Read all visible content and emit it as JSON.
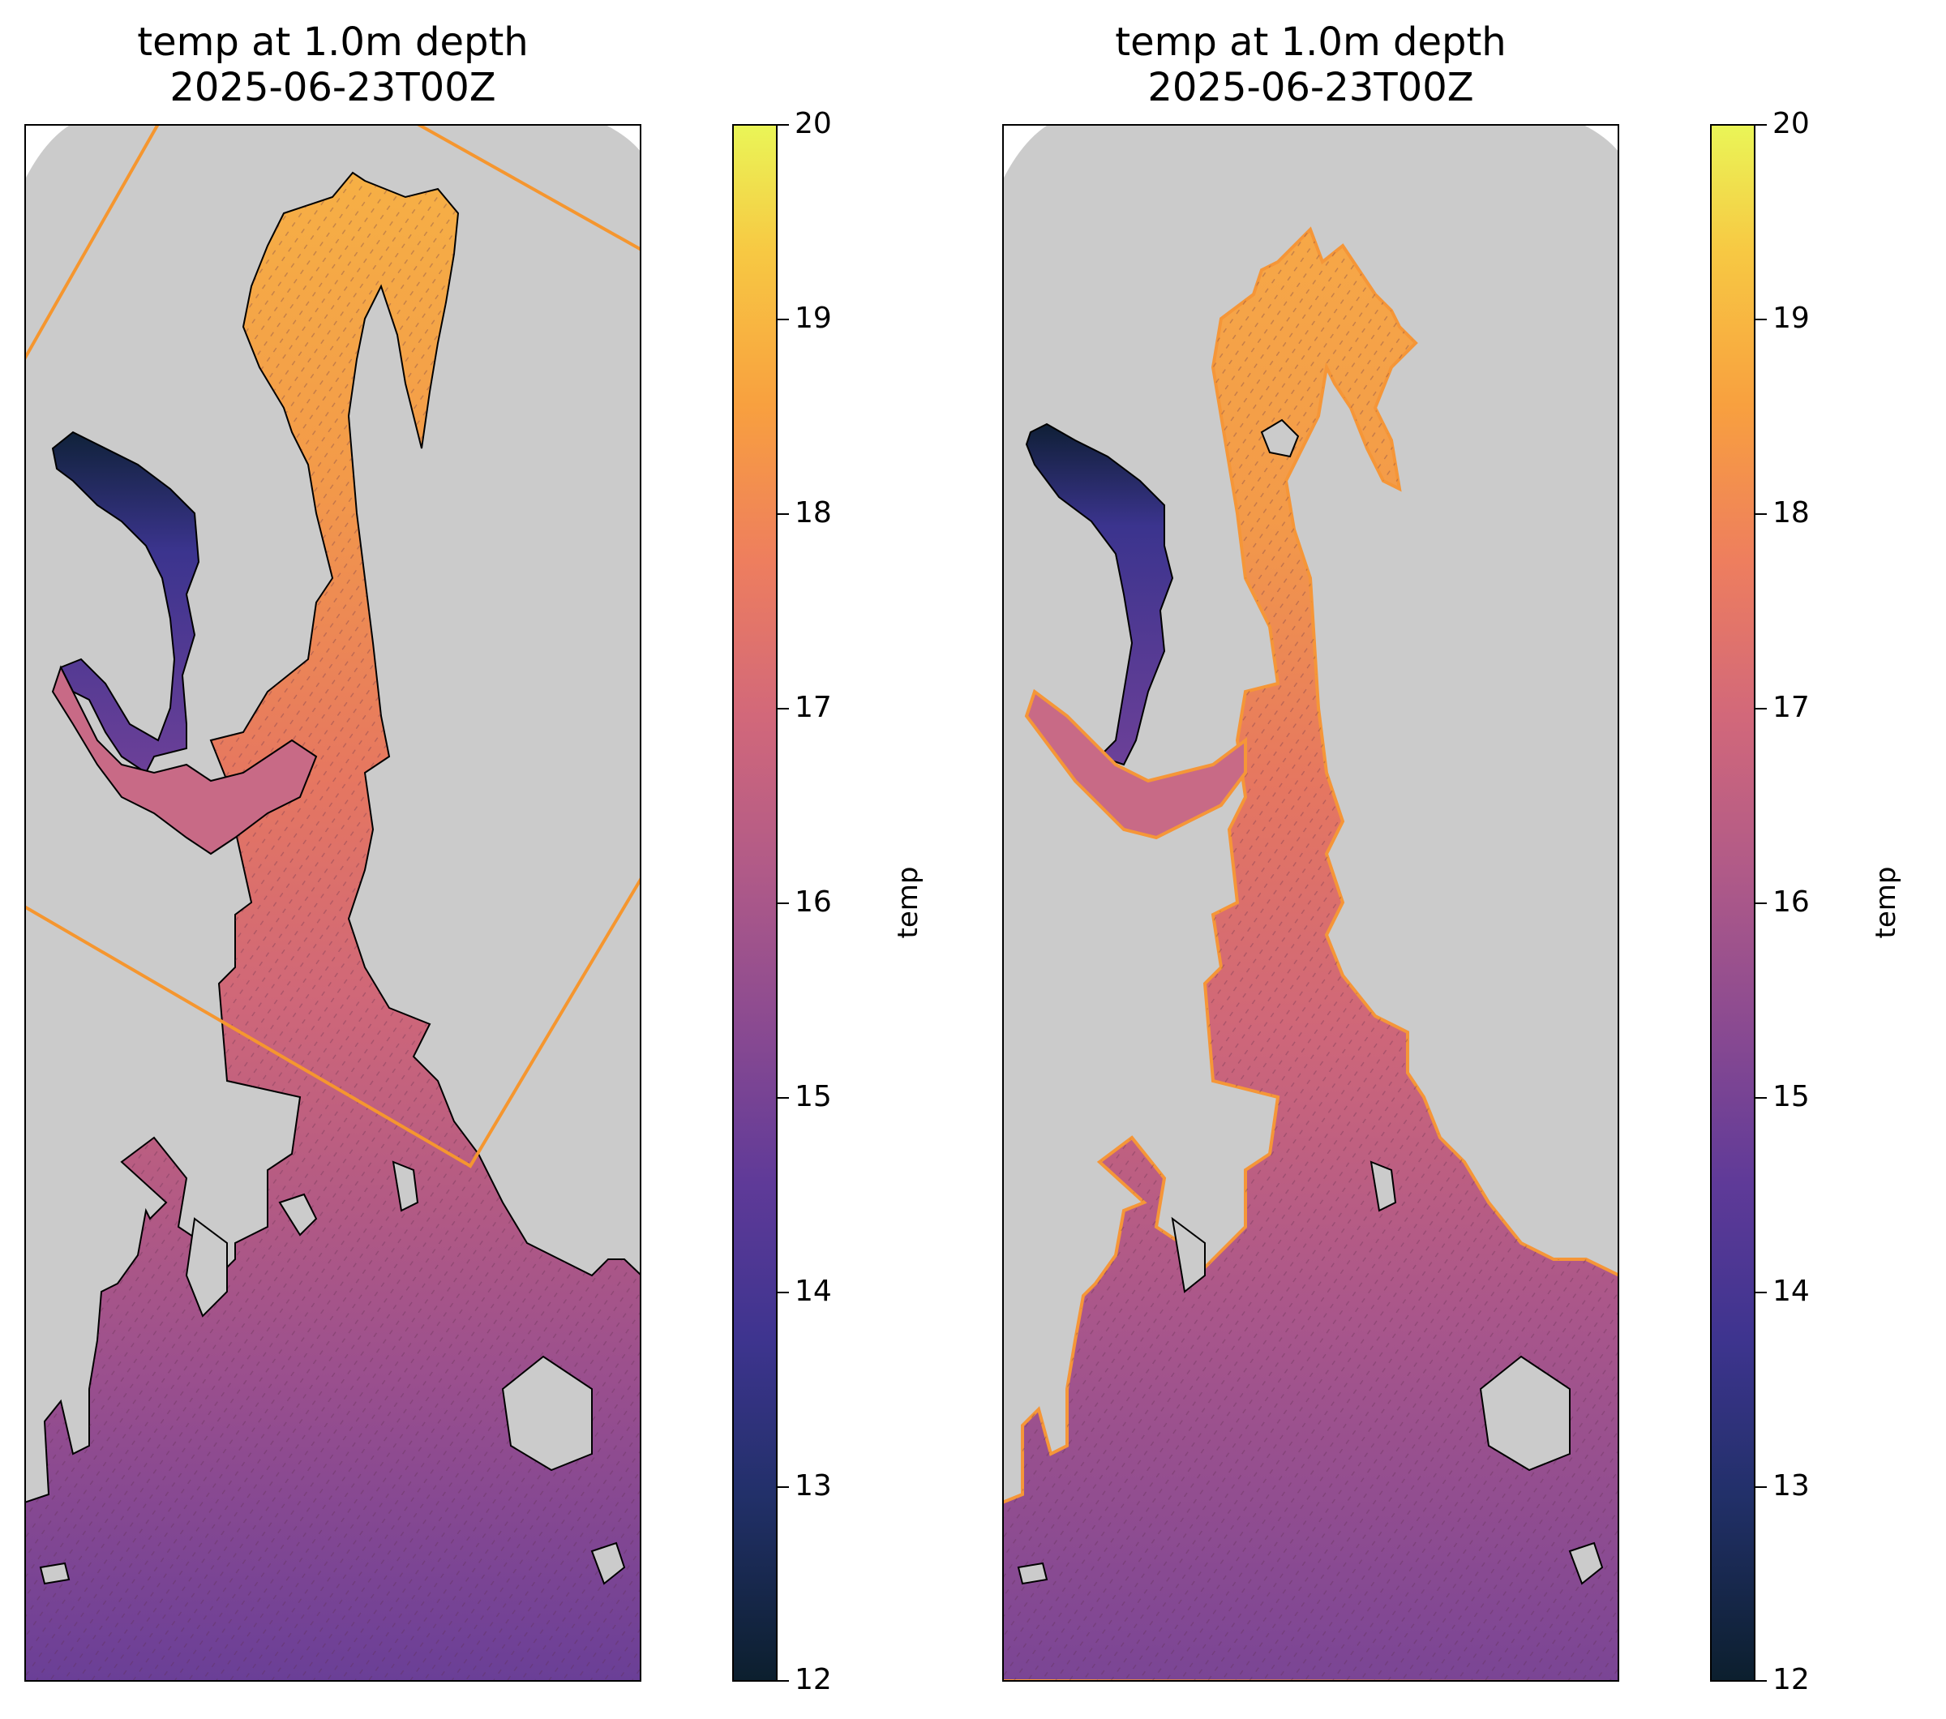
{
  "panels": [
    {
      "title_line1": "temp at 1.0m depth",
      "title_line2": "2025-06-23T00Z",
      "colorbar": {
        "label": "temp",
        "ticks": [
          "20",
          "19",
          "18",
          "17",
          "16",
          "15",
          "14",
          "13",
          "12"
        ]
      }
    },
    {
      "title_line1": "temp at 1.0m depth",
      "title_line2": "2025-06-23T00Z",
      "colorbar": {
        "label": "temp",
        "ticks": [
          "20",
          "19",
          "18",
          "17",
          "16",
          "15",
          "14",
          "13",
          "12"
        ]
      }
    }
  ],
  "colormap": {
    "range": [
      12,
      20
    ],
    "low_color": "#0c1f2e",
    "mid_color": "#b05a88",
    "high_color": "#eaf557"
  },
  "colors": {
    "land": "#cbcbcb",
    "outline_left": "#000000",
    "outline_right": "#f59638",
    "nest_box": "#f5962f"
  }
}
